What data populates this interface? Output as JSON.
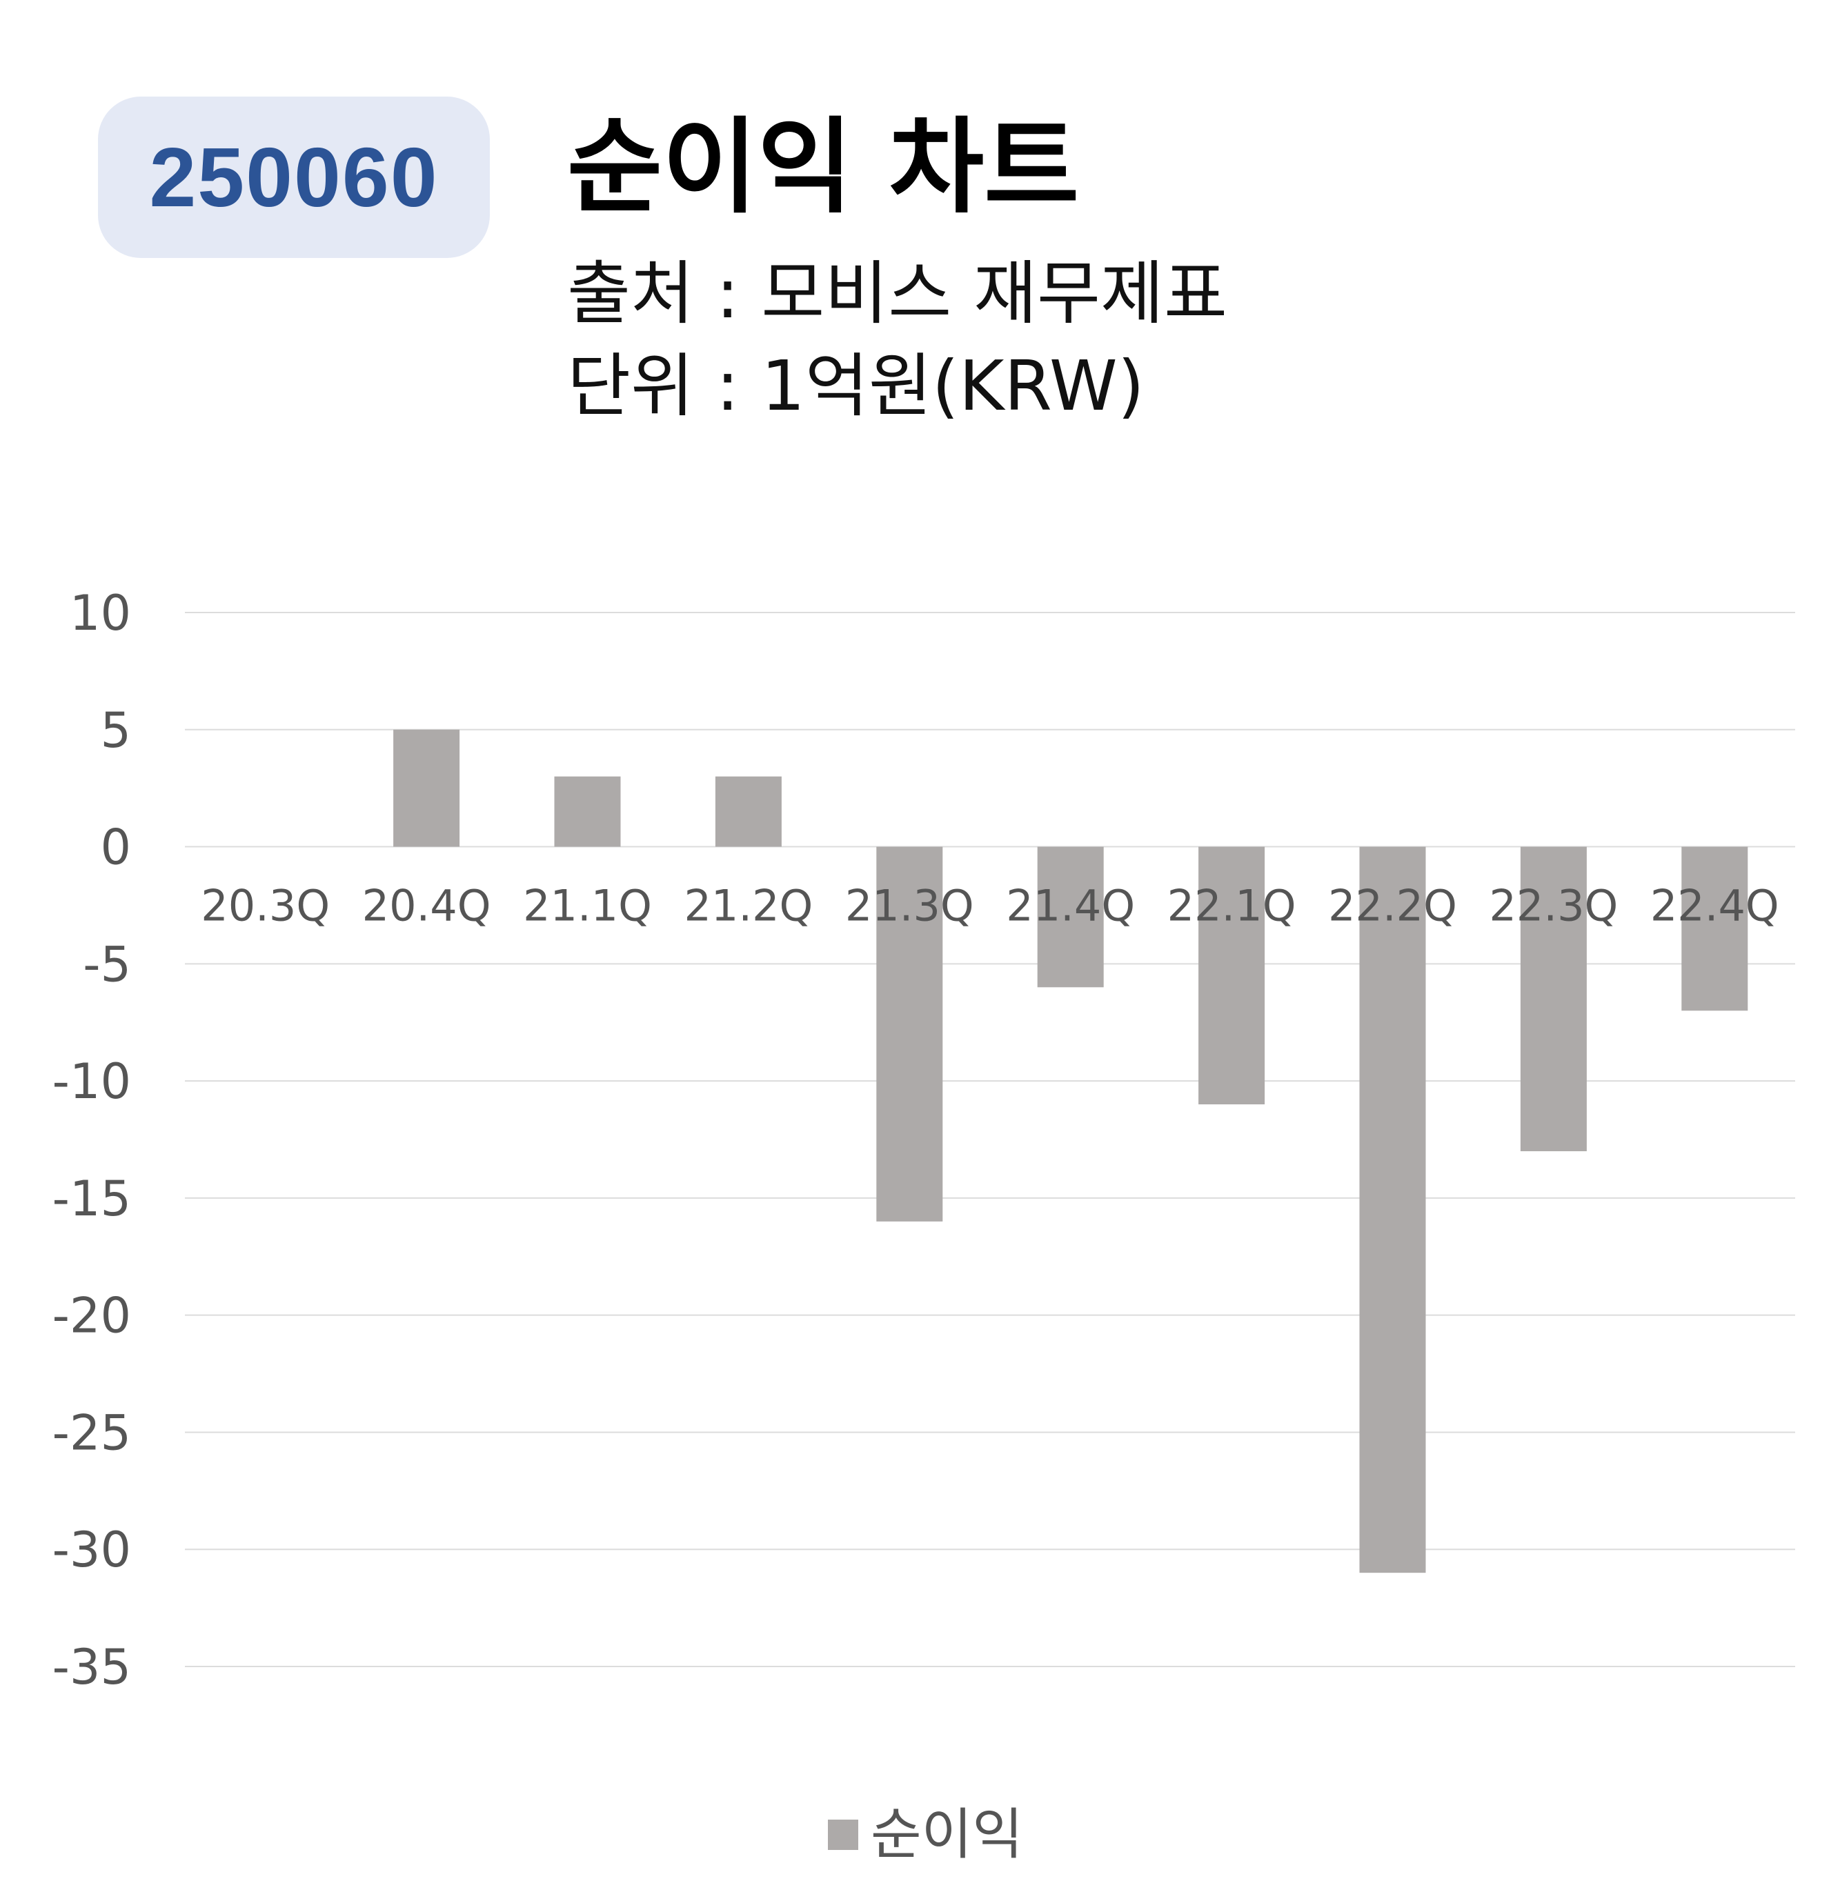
{
  "header": {
    "code": "250060",
    "title": "순이익 차트",
    "source": "출처 : 모비스 재무제표",
    "unit": "단위 : 1억원(KRW)"
  },
  "colors": {
    "bar": "#adaaa9",
    "grid": "#dcdcdc",
    "badge_bg": "#e4e9f5",
    "badge_text": "#2c5496"
  },
  "chart_data": {
    "type": "bar",
    "categories": [
      "20.3Q",
      "20.4Q",
      "21.1Q",
      "21.2Q",
      "21.3Q",
      "21.4Q",
      "22.1Q",
      "22.2Q",
      "22.3Q",
      "22.4Q"
    ],
    "series": [
      {
        "name": "순이익",
        "values": [
          0,
          5,
          3,
          3,
          -16,
          -6,
          -11,
          -31,
          -13,
          -7
        ]
      }
    ],
    "yticks": [
      10,
      5,
      0,
      -5,
      -10,
      -15,
      -20,
      -25,
      -30,
      -35
    ],
    "ylim": [
      -35,
      10
    ],
    "grid": true,
    "legend": "bottom-center"
  }
}
